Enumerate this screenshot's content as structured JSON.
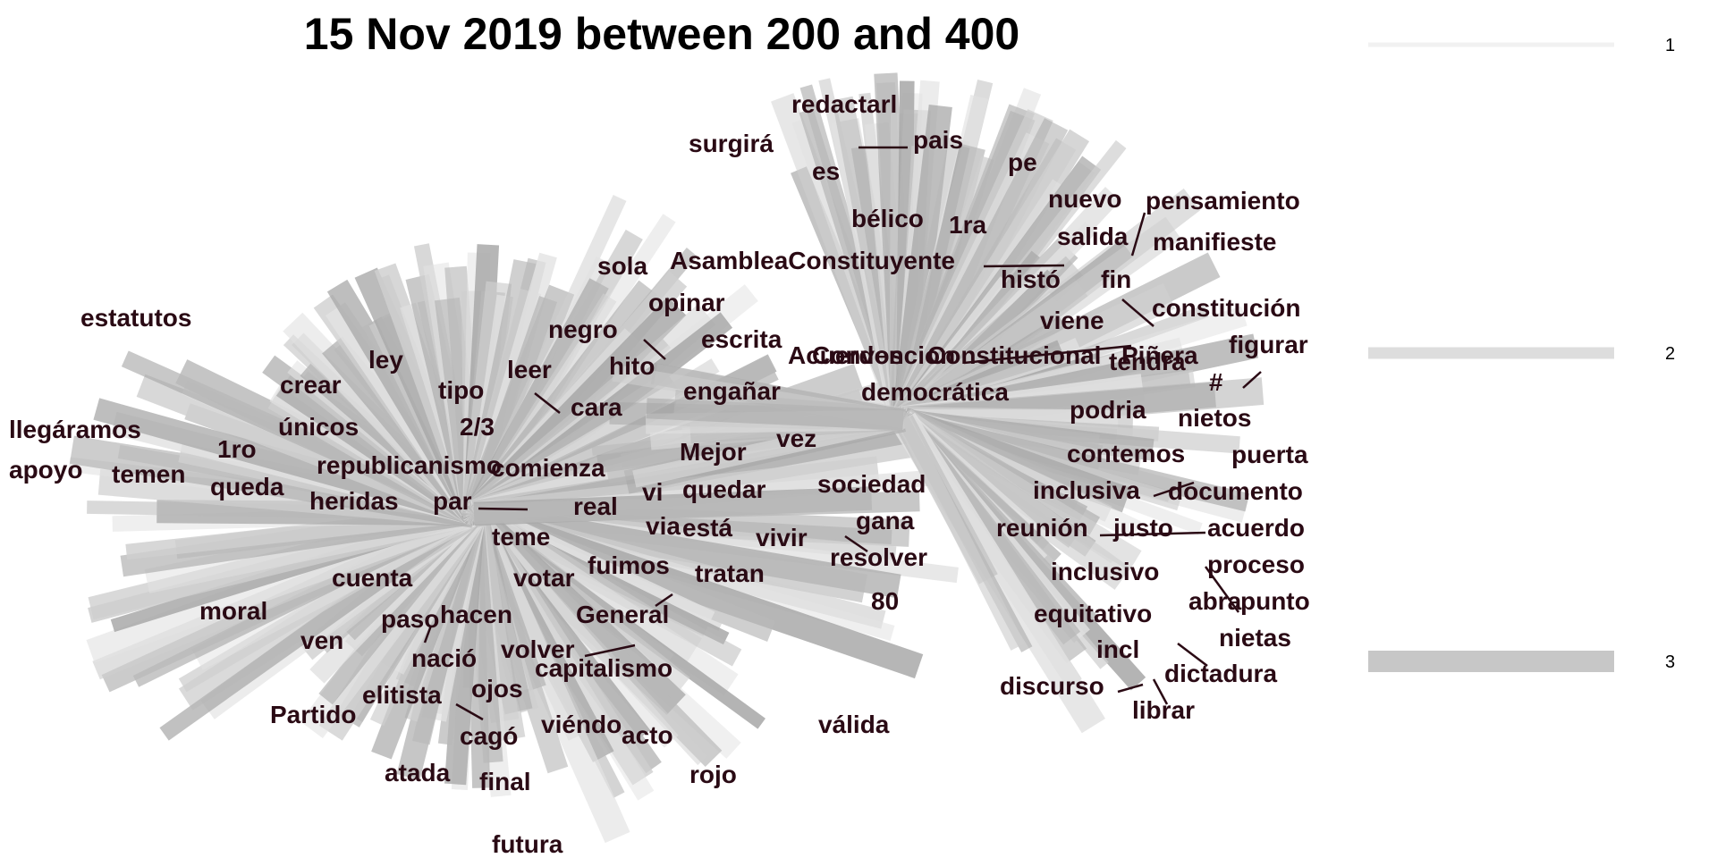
{
  "chart_data": {
    "type": "network",
    "title": "15 Nov 2019 between 200 and 400",
    "edge_color": "#a9a9a9",
    "label_color": "#2a0a14",
    "legend": {
      "placement": "right",
      "title": "",
      "entries": [
        {
          "label": "1",
          "weight": 1
        },
        {
          "label": "2",
          "weight": 2
        },
        {
          "label": "3",
          "weight": 3
        }
      ]
    },
    "words": [
      "estatutos",
      "llegáramos",
      "apoyo",
      "temen",
      "1ro",
      "queda",
      "crear",
      "ley",
      "únicos",
      "tipo",
      "2/3",
      "republicanismo",
      "comienza",
      "heridas",
      "par",
      "real",
      "teme",
      "cuenta",
      "votar",
      "fuimos",
      "tratan",
      "moral",
      "ven",
      "paso",
      "hacen",
      "General",
      "nació",
      "volver",
      "capitalismo",
      "elitista",
      "ojos",
      "Partido",
      "cagó",
      "viéndo",
      "acto",
      "atada",
      "final",
      "rojo",
      "futura",
      "válida",
      "sola",
      "opinar",
      "negro",
      "leer",
      "hito",
      "escrita",
      "cara",
      "engañar",
      "Mejor",
      "vez",
      "vi",
      "via",
      "está",
      "quedar",
      "vivir",
      "sociedad",
      "gana",
      "resolver",
      "80",
      "redactarl",
      "pais",
      "surgirá",
      "es",
      "bélico",
      "1ra",
      "pe",
      "nuevo",
      "pensamiento",
      "salida",
      "manifieste",
      "AsambleaConstituyente",
      "histó",
      "fin",
      "constitución",
      "viene",
      "figurar",
      "Acuerdos",
      "Convencion",
      "Constitucional",
      "Piñera",
      "tendra",
      "democrática",
      "#",
      "podria",
      "nietos",
      "contemos",
      "puerta",
      "inclusiva",
      "documento",
      "reunión",
      "justo",
      "acuerdo",
      "inclusivo",
      "proceso",
      "abra",
      "punto",
      "equitativo",
      "nietas",
      "incl",
      "dictadura",
      "discurso",
      "librar"
    ]
  }
}
